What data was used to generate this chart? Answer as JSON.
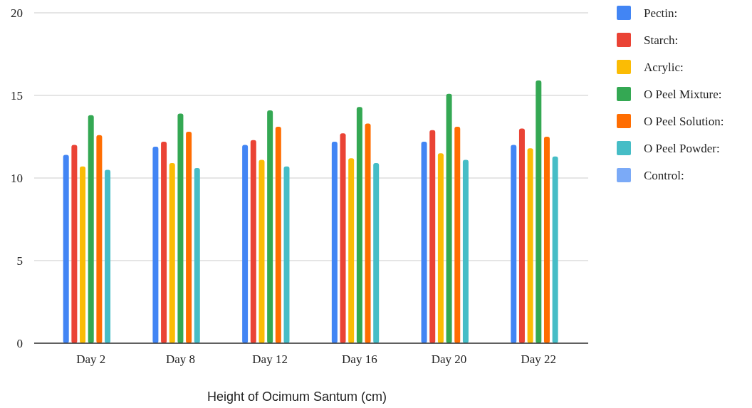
{
  "chart_data": {
    "type": "bar",
    "xlabel": "Height of Ocimum Santum (cm)",
    "categories": [
      "Day 2",
      "Day 8",
      "Day 12",
      "Day 16",
      "Day 20",
      "Day 22"
    ],
    "series": [
      {
        "name": "Pectin:",
        "color": "#4285f4",
        "values": [
          11.4,
          11.9,
          12.0,
          12.2,
          12.2,
          12.0
        ]
      },
      {
        "name": "Starch:",
        "color": "#ea4335",
        "values": [
          12.0,
          12.2,
          12.3,
          12.7,
          12.9,
          13.0
        ]
      },
      {
        "name": "Acrylic:",
        "color": "#fbbc04",
        "values": [
          10.7,
          10.9,
          11.1,
          11.2,
          11.5,
          11.8
        ]
      },
      {
        "name": "O Peel Mixture:",
        "color": "#34a853",
        "values": [
          13.8,
          13.9,
          14.1,
          14.3,
          15.1,
          15.9
        ]
      },
      {
        "name": "O Peel Solution:",
        "color": "#ff6d01",
        "values": [
          12.6,
          12.8,
          13.1,
          13.3,
          13.1,
          12.5
        ]
      },
      {
        "name": "O Peel Powder:",
        "color": "#46bdc6",
        "values": [
          10.5,
          10.6,
          10.7,
          10.9,
          11.1,
          11.3
        ]
      },
      {
        "name": "Control:",
        "color": "#7baaf7",
        "values": [
          null,
          null,
          null,
          null,
          null,
          null
        ]
      }
    ],
    "ylim": [
      0,
      20
    ],
    "yticks": [
      0,
      5,
      10,
      15,
      20
    ],
    "grid": "y",
    "legend": "right"
  }
}
